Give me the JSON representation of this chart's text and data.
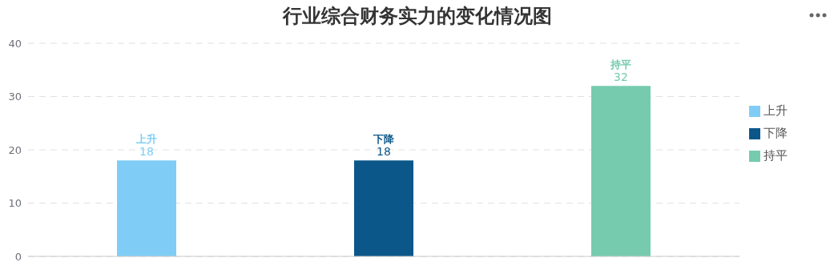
{
  "chart_data": {
    "type": "bar",
    "title": "行业综合财务实力的变化情况图",
    "categories": [
      null,
      null,
      null
    ],
    "series": [
      {
        "name": "上升",
        "color": "#7fcdf6",
        "values": [
          18,
          null,
          null
        ]
      },
      {
        "name": "下降",
        "color": "#0b578a",
        "values": [
          null,
          18,
          null
        ]
      },
      {
        "name": "持平",
        "color": "#76cbaf",
        "values": [
          null,
          null,
          32
        ]
      }
    ],
    "ylim": [
      0,
      40
    ],
    "yticks": [
      0,
      10,
      20,
      30,
      40
    ],
    "grid": "y",
    "legend": "right",
    "tick_labels": "y",
    "data_labels": true
  }
}
